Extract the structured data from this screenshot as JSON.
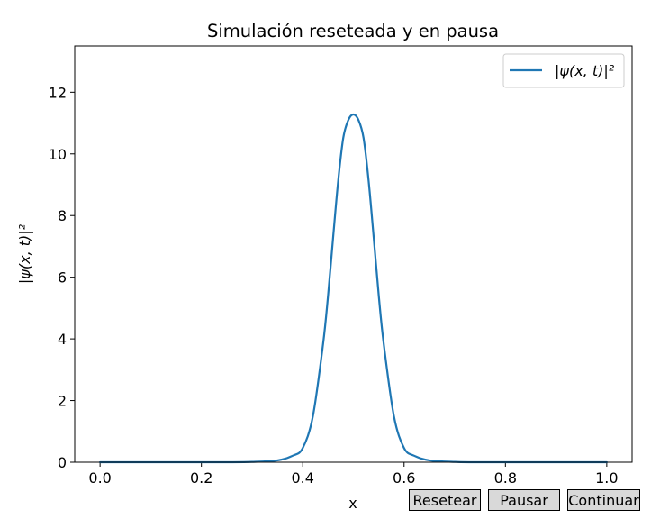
{
  "chart_data": {
    "type": "line",
    "title": "Simulación reseteada y en pausa",
    "xlabel": "x",
    "ylabel": "|ψ(x, t)|²",
    "xlim": [
      -0.05,
      1.05
    ],
    "ylim": [
      0,
      13.5
    ],
    "xticks": [
      0.0,
      0.2,
      0.4,
      0.6,
      0.8,
      1.0
    ],
    "xtick_labels": [
      "0.0",
      "0.2",
      "0.4",
      "0.6",
      "0.8",
      "1.0"
    ],
    "yticks": [
      0,
      2,
      4,
      6,
      8,
      10,
      12
    ],
    "ytick_labels": [
      "0",
      "2",
      "4",
      "6",
      "8",
      "10",
      "12"
    ],
    "grid": false,
    "legend_position": "top-right",
    "series": [
      {
        "name": "|ψ(x, t)|²",
        "color": "#1f77b4",
        "x": [
          0.0,
          0.05,
          0.1,
          0.15,
          0.2,
          0.25,
          0.3,
          0.35,
          0.38,
          0.4,
          0.42,
          0.44,
          0.45,
          0.46,
          0.47,
          0.48,
          0.49,
          0.5,
          0.51,
          0.52,
          0.53,
          0.54,
          0.55,
          0.56,
          0.58,
          0.6,
          0.62,
          0.65,
          0.7,
          0.75,
          0.8,
          0.85,
          0.9,
          0.95,
          1.0
        ],
        "y": [
          0,
          0,
          0,
          0,
          0,
          0,
          0.01,
          0.06,
          0.21,
          0.46,
          1.49,
          3.82,
          5.41,
          7.3,
          9.13,
          10.52,
          11.1,
          11.28,
          11.1,
          10.52,
          9.13,
          7.3,
          5.41,
          3.82,
          1.49,
          0.46,
          0.21,
          0.06,
          0.01,
          0,
          0,
          0,
          0,
          0,
          0
        ]
      }
    ]
  },
  "buttons": {
    "reset": "Resetear",
    "pause": "Pausar",
    "continue": "Continuar"
  }
}
